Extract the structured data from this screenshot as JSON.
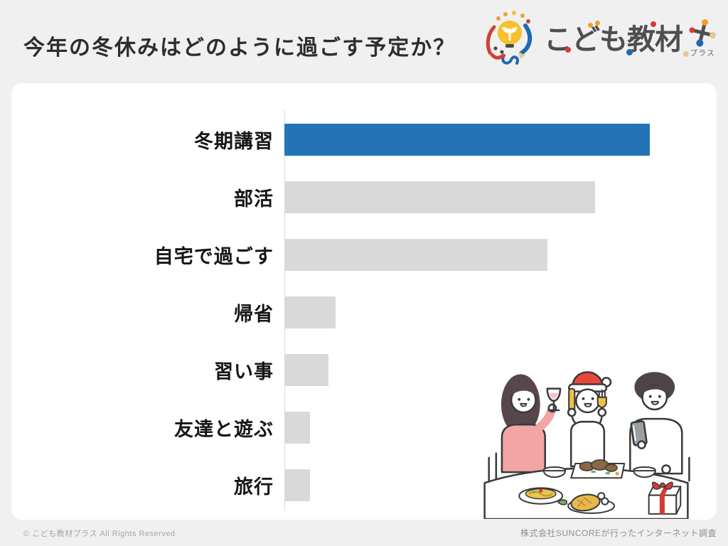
{
  "page": {
    "title": "今年の冬休みはどのように過ごす予定か？",
    "background_color": "#f0f0f1"
  },
  "logo": {
    "name": "こども教材プラス",
    "text": "こども教材",
    "plus_label": "プラス",
    "accent_colors": [
      "#d63c35",
      "#f0a030",
      "#2068b0",
      "#e6c896",
      "#f6c12b"
    ]
  },
  "chart_data": {
    "type": "bar",
    "orientation": "horizontal",
    "title": "今年の冬休みはどのように過ごす予定か？",
    "categories": [
      "冬期講習",
      "部活",
      "自宅で過ごす",
      "帰省",
      "習い事",
      "友達と遊ぶ",
      "旅行"
    ],
    "values": [
      100,
      85,
      72,
      14,
      12,
      7,
      7
    ],
    "values_note": "relative bar lengths, longest bar = 100; no numeric labels, axis ticks or gridlines are shown",
    "highlight_index": 0,
    "highlight_color": "#2474b5",
    "bar_color": "#d9d9d9",
    "axis_line_color": "#dcdcdc",
    "legend": "none",
    "grid": "off"
  },
  "footer": {
    "copyright": "© こども教材プラス All Rights Reserved",
    "source": "株式会社SUNCOREが行ったインターネット調査"
  },
  "illustration": {
    "name": "family-christmas-dinner-illustration",
    "elements": [
      "woman-with-wine-glass",
      "child-with-santa-hat-knife-fork",
      "man-with-smartphone",
      "dinner-table",
      "bowls",
      "roast-platter",
      "pasta-plate",
      "chicken-plate",
      "gift-box"
    ]
  }
}
